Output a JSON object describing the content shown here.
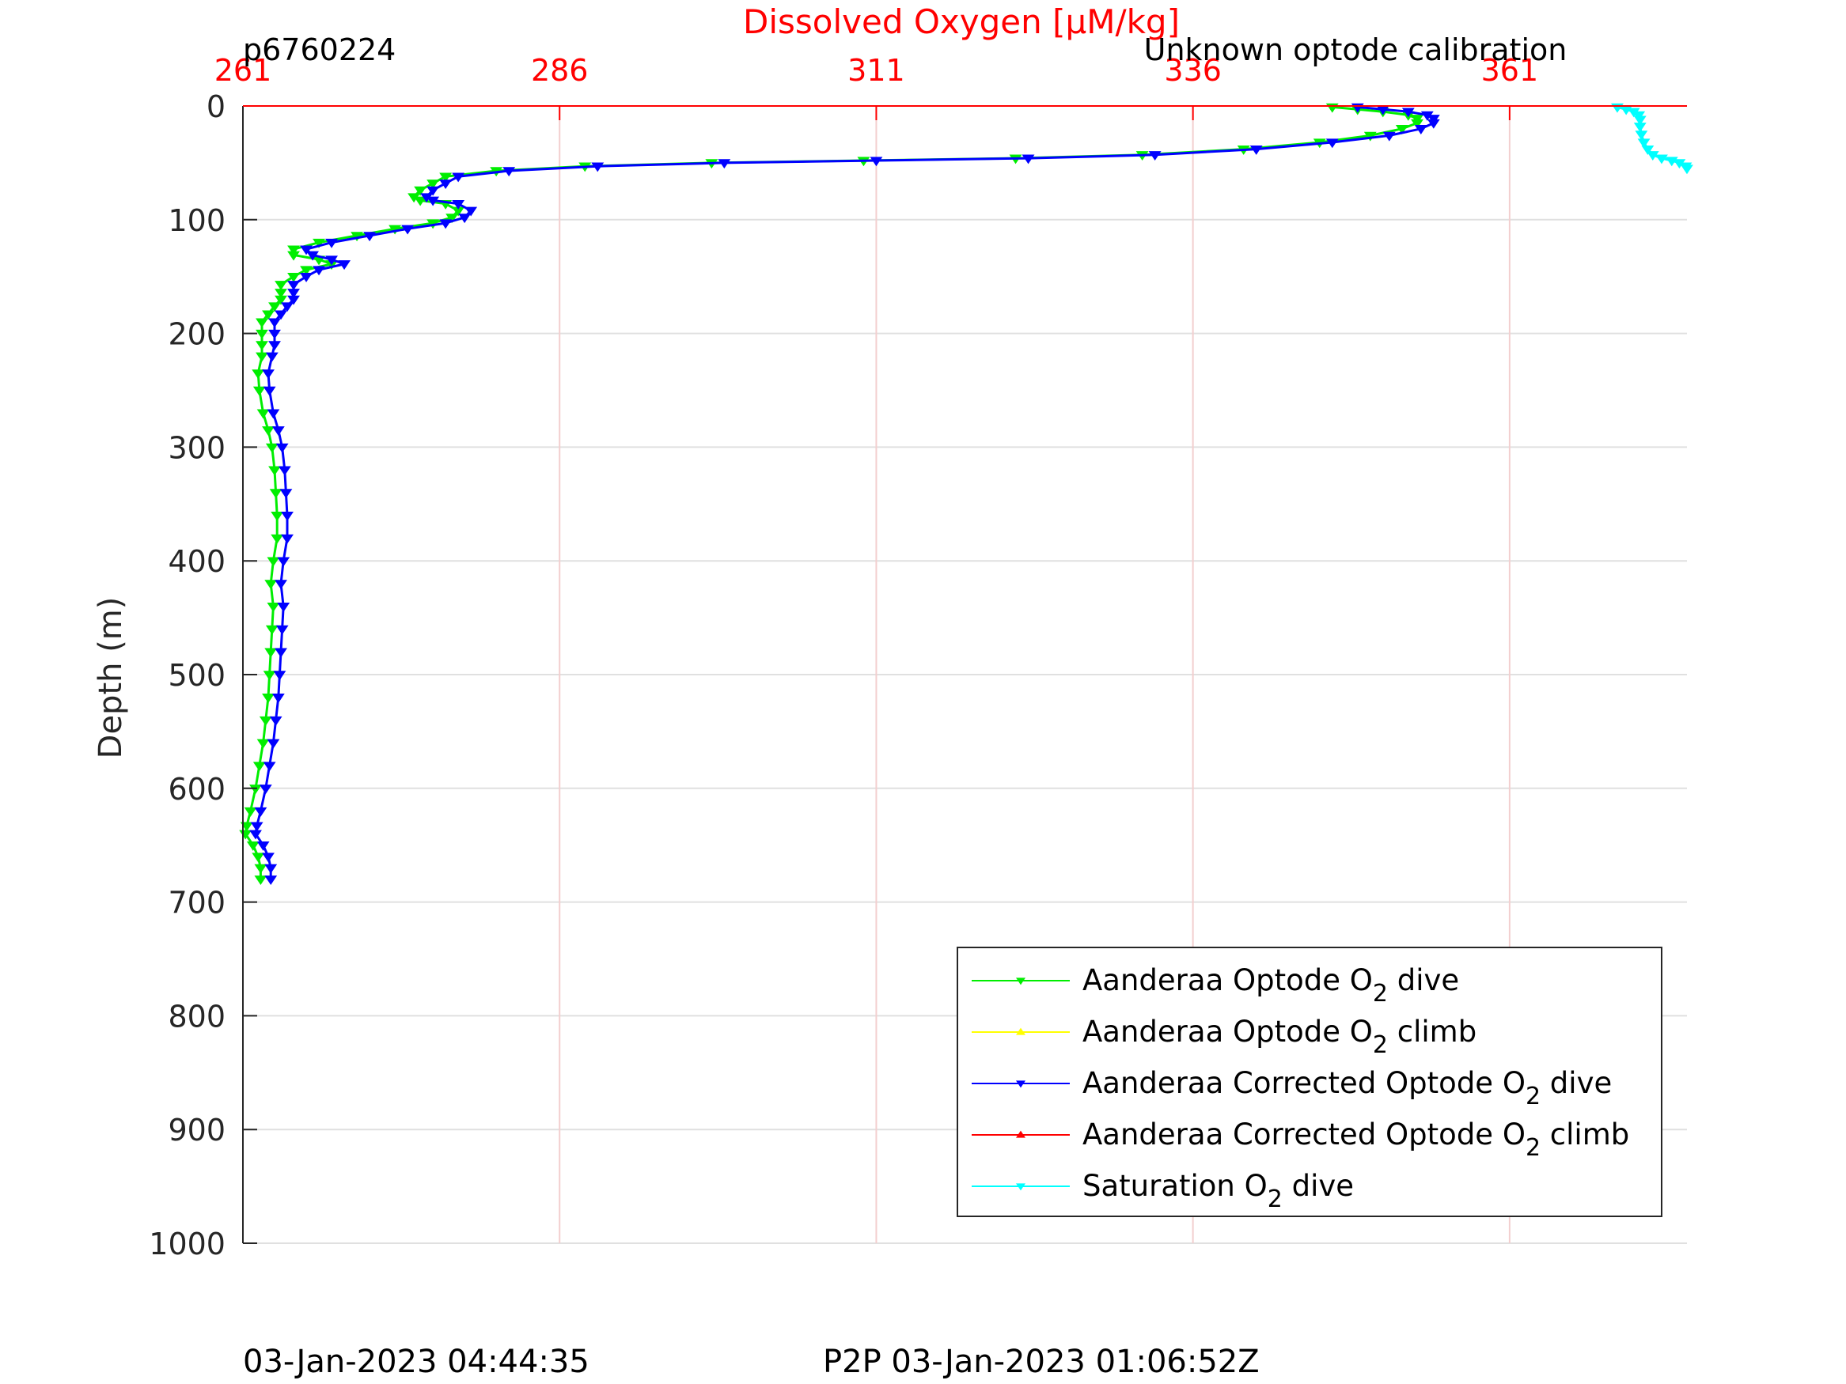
{
  "chart_data": {
    "type": "line",
    "title": "Dissolved Oxygen [μM/kg]",
    "title_color": "#ff0000",
    "id_label": "p6760224",
    "calibration_note": "Unknown optode calibration",
    "xlabel": "Dissolved Oxygen [μM/kg]",
    "ylabel": "Depth (m)",
    "xlim": [
      261,
      375
    ],
    "ylim": [
      0,
      1000
    ],
    "y_reversed": true,
    "x_axis_position": "top",
    "xticks": [
      "261",
      "286",
      "311",
      "336",
      "361"
    ],
    "yticks": [
      "0",
      "100",
      "200",
      "300",
      "400",
      "500",
      "600",
      "700",
      "800",
      "900",
      "1000"
    ],
    "grid": true,
    "legend_position": "bottom-right",
    "series": [
      {
        "name": "Aanderaa Optode O2 dive",
        "legend": {
          "pre": "Aanderaa Optode O",
          "sub": "2",
          "post": " dive"
        },
        "color": "#00ee00",
        "marker": "down-triangle",
        "points": [
          [
            347,
            1
          ],
          [
            349,
            3
          ],
          [
            351,
            5
          ],
          [
            353,
            8
          ],
          [
            353.7,
            11
          ],
          [
            353.7,
            15
          ],
          [
            352.5,
            20
          ],
          [
            350,
            26
          ],
          [
            346,
            32
          ],
          [
            340,
            38
          ],
          [
            332,
            43
          ],
          [
            322,
            46
          ],
          [
            310,
            48
          ],
          [
            298,
            50
          ],
          [
            288,
            53
          ],
          [
            281,
            57
          ],
          [
            277,
            62
          ],
          [
            276,
            68
          ],
          [
            275,
            74
          ],
          [
            274.5,
            80
          ],
          [
            275,
            83
          ],
          [
            277,
            86
          ],
          [
            278,
            92
          ],
          [
            277.5,
            98
          ],
          [
            276,
            103
          ],
          [
            273,
            108
          ],
          [
            270,
            114
          ],
          [
            267,
            120
          ],
          [
            265,
            126
          ],
          [
            265,
            131
          ],
          [
            267,
            135
          ],
          [
            268,
            139
          ],
          [
            266,
            144
          ],
          [
            265,
            150
          ],
          [
            264,
            157
          ],
          [
            264,
            164
          ],
          [
            264,
            170
          ],
          [
            263.5,
            176
          ],
          [
            263,
            183
          ],
          [
            262.5,
            190
          ],
          [
            262.5,
            200
          ],
          [
            262.5,
            210
          ],
          [
            262.5,
            220
          ],
          [
            262.2,
            235
          ],
          [
            262.3,
            250
          ],
          [
            262.6,
            270
          ],
          [
            263,
            285
          ],
          [
            263.3,
            300
          ],
          [
            263.5,
            320
          ],
          [
            263.6,
            340
          ],
          [
            263.7,
            360
          ],
          [
            263.7,
            380
          ],
          [
            263.4,
            400
          ],
          [
            263.2,
            420
          ],
          [
            263.4,
            440
          ],
          [
            263.3,
            460
          ],
          [
            263.2,
            480
          ],
          [
            263.1,
            500
          ],
          [
            263,
            520
          ],
          [
            262.8,
            540
          ],
          [
            262.6,
            560
          ],
          [
            262.3,
            580
          ],
          [
            262,
            600
          ],
          [
            261.6,
            620
          ],
          [
            261.3,
            633
          ],
          [
            261.2,
            640
          ],
          [
            261.8,
            650
          ],
          [
            262.2,
            660
          ],
          [
            262.4,
            670
          ],
          [
            262.4,
            680
          ]
        ]
      },
      {
        "name": "Aanderaa Optode O2 climb",
        "legend": {
          "pre": "Aanderaa Optode O",
          "sub": "2",
          "post": " climb"
        },
        "color": "#ffff00",
        "marker": "up-triangle",
        "points": []
      },
      {
        "name": "Aanderaa Corrected Optode O2 dive",
        "legend": {
          "pre": "Aanderaa Corrected Optode O",
          "sub": "2",
          "post": " dive"
        },
        "color": "#0000ff",
        "marker": "down-triangle",
        "points": [
          [
            349,
            1
          ],
          [
            351,
            3
          ],
          [
            353,
            5
          ],
          [
            354.5,
            8
          ],
          [
            355,
            11
          ],
          [
            355,
            15
          ],
          [
            354,
            20
          ],
          [
            351.5,
            26
          ],
          [
            347,
            32
          ],
          [
            341,
            38
          ],
          [
            333,
            43
          ],
          [
            323,
            46
          ],
          [
            311,
            48
          ],
          [
            299,
            50
          ],
          [
            289,
            53
          ],
          [
            282,
            57
          ],
          [
            278,
            62
          ],
          [
            277,
            68
          ],
          [
            276,
            74
          ],
          [
            275.5,
            80
          ],
          [
            276,
            83
          ],
          [
            278,
            86
          ],
          [
            279,
            92
          ],
          [
            278.5,
            98
          ],
          [
            277,
            103
          ],
          [
            274,
            108
          ],
          [
            271,
            114
          ],
          [
            268,
            120
          ],
          [
            266,
            126
          ],
          [
            266.5,
            131
          ],
          [
            268,
            135
          ],
          [
            269,
            139
          ],
          [
            267,
            144
          ],
          [
            266,
            150
          ],
          [
            265,
            157
          ],
          [
            265,
            164
          ],
          [
            265,
            170
          ],
          [
            264.5,
            176
          ],
          [
            264,
            183
          ],
          [
            263.5,
            190
          ],
          [
            263.5,
            200
          ],
          [
            263.5,
            210
          ],
          [
            263.3,
            220
          ],
          [
            263,
            235
          ],
          [
            263.1,
            250
          ],
          [
            263.4,
            270
          ],
          [
            263.8,
            285
          ],
          [
            264.1,
            300
          ],
          [
            264.3,
            320
          ],
          [
            264.4,
            340
          ],
          [
            264.5,
            360
          ],
          [
            264.5,
            380
          ],
          [
            264.2,
            400
          ],
          [
            264,
            420
          ],
          [
            264.2,
            440
          ],
          [
            264.1,
            460
          ],
          [
            264,
            480
          ],
          [
            263.9,
            500
          ],
          [
            263.8,
            520
          ],
          [
            263.6,
            540
          ],
          [
            263.4,
            560
          ],
          [
            263.1,
            580
          ],
          [
            262.8,
            600
          ],
          [
            262.4,
            620
          ],
          [
            262.1,
            633
          ],
          [
            262,
            640
          ],
          [
            262.6,
            650
          ],
          [
            263,
            660
          ],
          [
            263.2,
            670
          ],
          [
            263.2,
            680
          ]
        ]
      },
      {
        "name": "Aanderaa Corrected Optode O2 climb",
        "legend": {
          "pre": "Aanderaa Corrected Optode O",
          "sub": "2",
          "post": " climb"
        },
        "color": "#ff0000",
        "marker": "up-triangle",
        "points": []
      },
      {
        "name": "Saturation O2 dive",
        "legend": {
          "pre": "Saturation O",
          "sub": "2",
          "post": " dive"
        },
        "color": "#00ffff",
        "marker": "down-triangle",
        "points": [
          [
            369.5,
            1
          ],
          [
            370.2,
            3
          ],
          [
            370.8,
            5
          ],
          [
            371.2,
            8
          ],
          [
            371.3,
            12
          ],
          [
            371.3,
            18
          ],
          [
            371.4,
            25
          ],
          [
            371.6,
            32
          ],
          [
            371.9,
            38
          ],
          [
            372.3,
            43
          ],
          [
            373,
            46
          ],
          [
            373.8,
            48
          ],
          [
            374.4,
            50
          ],
          [
            374.9,
            53
          ],
          [
            375,
            55
          ]
        ]
      }
    ]
  },
  "footer": {
    "left_timestamp": "03-Jan-2023 04:44:35",
    "right_timestamp": "P2P 03-Jan-2023 01:06:52Z"
  }
}
